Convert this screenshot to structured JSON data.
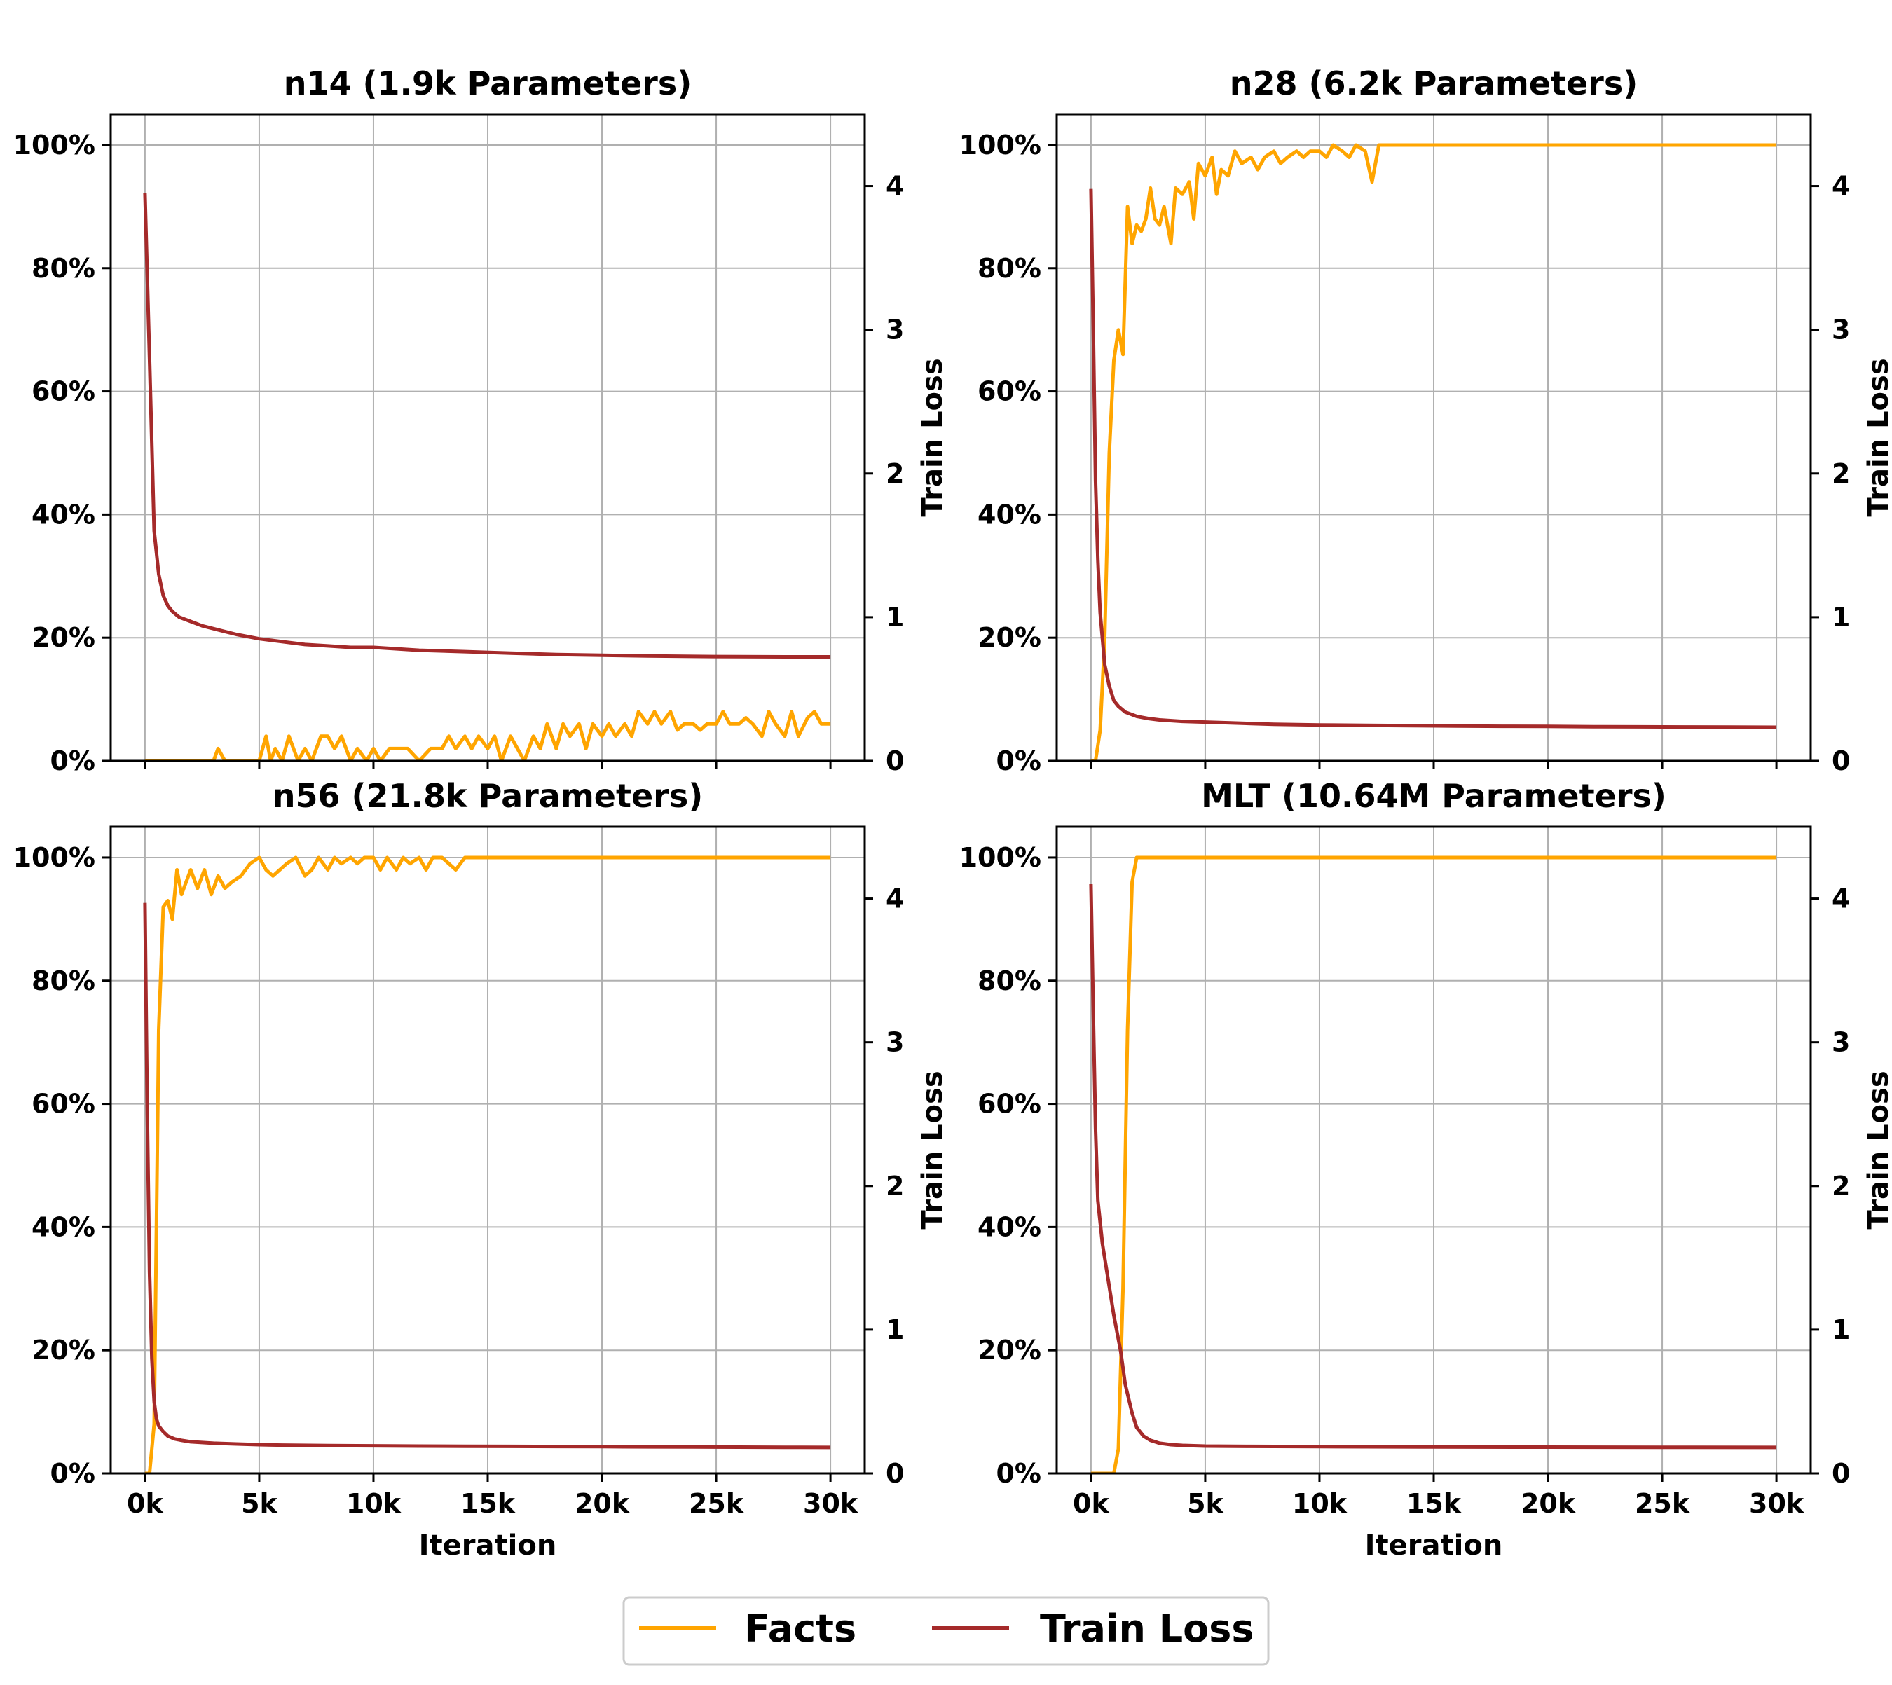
{
  "chart_data": {
    "type": "line",
    "colors": {
      "facts": "#FFA500",
      "loss": "#A52A2A",
      "grid": "#b0b0b0"
    },
    "x_ticks": [
      0,
      5000,
      10000,
      15000,
      20000,
      25000,
      30000
    ],
    "x_tick_labels": [
      "0k",
      "5k",
      "10k",
      "15k",
      "20k",
      "25k",
      "30k"
    ],
    "xlabel": "Iteration",
    "y_left_ticks": [
      0,
      20,
      40,
      60,
      80,
      100
    ],
    "y_left_tick_labels": [
      "0%",
      "20%",
      "40%",
      "60%",
      "80%",
      "100%"
    ],
    "y_right_ticks": [
      0,
      1,
      2,
      3,
      4
    ],
    "y_right_tick_labels": [
      "0",
      "1",
      "2",
      "3",
      "4"
    ],
    "y_right_label": "Train Loss",
    "xlim": [
      -1500,
      31500
    ],
    "ylim_left": [
      0,
      105
    ],
    "ylim_right": [
      0,
      4.5
    ],
    "legend": {
      "placement": "bottom-center",
      "entries": [
        "Facts",
        "Train Loss"
      ]
    },
    "panels": [
      {
        "id": "n14",
        "title": "n14 (1.9k Parameters)",
        "show_x_labels": false,
        "facts": {
          "x": [
            0,
            500,
            1000,
            1500,
            2000,
            2500,
            3000,
            3200,
            3500,
            4000,
            4500,
            5000,
            5300,
            5500,
            5700,
            6000,
            6300,
            6700,
            7000,
            7300,
            7700,
            8000,
            8300,
            8600,
            9000,
            9300,
            9700,
            10000,
            10300,
            10700,
            11000,
            11500,
            12000,
            12500,
            13000,
            13300,
            13600,
            14000,
            14300,
            14600,
            15000,
            15300,
            15600,
            16000,
            16300,
            16600,
            17000,
            17300,
            17600,
            18000,
            18300,
            18600,
            19000,
            19300,
            19600,
            20000,
            20300,
            20600,
            21000,
            21300,
            21600,
            22000,
            22300,
            22600,
            23000,
            23300,
            23600,
            24000,
            24300,
            24600,
            25000,
            25300,
            25600,
            26000,
            26300,
            26600,
            27000,
            27300,
            27600,
            28000,
            28300,
            28600,
            29000,
            29300,
            29600,
            30000
          ],
          "y": [
            0,
            0,
            0,
            0,
            0,
            0,
            0,
            2,
            0,
            0,
            0,
            0,
            4,
            0,
            2,
            0,
            4,
            0,
            2,
            0,
            4,
            4,
            2,
            4,
            0,
            2,
            0,
            2,
            0,
            2,
            2,
            2,
            0,
            2,
            2,
            4,
            2,
            4,
            2,
            4,
            2,
            4,
            0,
            4,
            2,
            0,
            4,
            2,
            6,
            2,
            6,
            4,
            6,
            2,
            6,
            4,
            6,
            4,
            6,
            4,
            8,
            6,
            8,
            6,
            8,
            5,
            6,
            6,
            5,
            6,
            6,
            8,
            6,
            6,
            7,
            6,
            4,
            8,
            6,
            4,
            8,
            4,
            7,
            8,
            6,
            6
          ]
        },
        "loss": {
          "x": [
            0,
            200,
            400,
            600,
            800,
            1000,
            1200,
            1500,
            2000,
            2500,
            3000,
            3500,
            4000,
            5000,
            6000,
            7000,
            8000,
            9000,
            10000,
            12000,
            14000,
            16000,
            18000,
            20000,
            22000,
            24000,
            26000,
            28000,
            30000
          ],
          "y": [
            3.95,
            2.8,
            1.6,
            1.3,
            1.15,
            1.08,
            1.04,
            1.0,
            0.97,
            0.94,
            0.92,
            0.9,
            0.88,
            0.85,
            0.83,
            0.81,
            0.8,
            0.79,
            0.79,
            0.77,
            0.76,
            0.75,
            0.74,
            0.735,
            0.73,
            0.727,
            0.725,
            0.724,
            0.724
          ]
        }
      },
      {
        "id": "n28",
        "title": "n28 (6.2k Parameters)",
        "show_x_labels": false,
        "facts": {
          "x": [
            0,
            200,
            400,
            600,
            800,
            1000,
            1200,
            1400,
            1600,
            1800,
            2000,
            2200,
            2400,
            2600,
            2800,
            3000,
            3200,
            3500,
            3700,
            4000,
            4300,
            4500,
            4700,
            5000,
            5300,
            5500,
            5700,
            6000,
            6300,
            6600,
            7000,
            7300,
            7600,
            8000,
            8300,
            8600,
            9000,
            9300,
            9600,
            10000,
            10300,
            10600,
            11000,
            11300,
            11600,
            12000,
            12300,
            12600,
            13000,
            15000,
            20000,
            25000,
            30000
          ],
          "y": [
            0,
            0,
            5,
            20,
            50,
            65,
            70,
            66,
            90,
            84,
            87,
            86,
            88,
            93,
            88,
            87,
            90,
            84,
            93,
            92,
            94,
            88,
            97,
            95,
            98,
            92,
            96,
            95,
            99,
            97,
            98,
            96,
            98,
            99,
            97,
            98,
            99,
            98,
            99,
            99,
            98,
            100,
            99,
            98,
            100,
            99,
            94,
            100,
            100,
            100,
            100,
            100,
            100
          ]
        },
        "loss": {
          "x": [
            0,
            100,
            200,
            300,
            400,
            600,
            800,
            1000,
            1200,
            1500,
            2000,
            2500,
            3000,
            4000,
            5000,
            6000,
            7000,
            8000,
            9000,
            10000,
            12000,
            14000,
            16000,
            18000,
            20000,
            22000,
            24000,
            26000,
            28000,
            30000
          ],
          "y": [
            3.98,
            3.0,
            1.95,
            1.4,
            1.03,
            0.67,
            0.52,
            0.42,
            0.38,
            0.34,
            0.31,
            0.295,
            0.285,
            0.275,
            0.27,
            0.265,
            0.26,
            0.255,
            0.252,
            0.25,
            0.247,
            0.245,
            0.243,
            0.241,
            0.24,
            0.238,
            0.237,
            0.236,
            0.235,
            0.234
          ]
        }
      },
      {
        "id": "n56",
        "title": "n56 (21.8k Parameters)",
        "show_x_labels": true,
        "facts": {
          "x": [
            0,
            200,
            400,
            600,
            800,
            1000,
            1200,
            1400,
            1600,
            1800,
            2000,
            2300,
            2600,
            2900,
            3200,
            3500,
            3800,
            4200,
            4600,
            5000,
            5300,
            5600,
            5900,
            6200,
            6600,
            7000,
            7300,
            7600,
            8000,
            8300,
            8600,
            9000,
            9300,
            9600,
            10000,
            10300,
            10600,
            11000,
            11300,
            11600,
            12000,
            12300,
            12600,
            13000,
            13300,
            13600,
            14000,
            20000,
            25000,
            30000
          ],
          "y": [
            0,
            0,
            8,
            72,
            92,
            93,
            90,
            98,
            94,
            96,
            98,
            95,
            98,
            94,
            97,
            95,
            96,
            97,
            99,
            100,
            98,
            97,
            98,
            99,
            100,
            97,
            98,
            100,
            98,
            100,
            99,
            100,
            99,
            100,
            100,
            98,
            100,
            98,
            100,
            99,
            100,
            98,
            100,
            100,
            99,
            98,
            100,
            100,
            100,
            100
          ]
        },
        "loss": {
          "x": [
            0,
            100,
            200,
            300,
            400,
            500,
            600,
            800,
            1000,
            1300,
            1600,
            2000,
            2500,
            3000,
            4000,
            5000,
            6000,
            8000,
            10000,
            12000,
            14000,
            16000,
            18000,
            20000,
            22000,
            24000,
            26000,
            28000,
            30000
          ],
          "y": [
            3.97,
            2.5,
            1.4,
            0.8,
            0.5,
            0.38,
            0.33,
            0.29,
            0.26,
            0.24,
            0.23,
            0.22,
            0.215,
            0.21,
            0.205,
            0.2,
            0.197,
            0.194,
            0.192,
            0.19,
            0.189,
            0.188,
            0.187,
            0.186,
            0.185,
            0.184,
            0.183,
            0.182,
            0.181
          ]
        }
      },
      {
        "id": "mlt",
        "title": "MLT (10.64M Parameters)",
        "show_x_labels": true,
        "facts": {
          "x": [
            0,
            500,
            1000,
            1200,
            1400,
            1600,
            1800,
            2000,
            2200,
            2400,
            3000,
            5000,
            10000,
            15000,
            20000,
            25000,
            30000
          ],
          "y": [
            0,
            0,
            0,
            4,
            30,
            72,
            96,
            100,
            100,
            100,
            100,
            100,
            100,
            100,
            100,
            100,
            100
          ]
        },
        "loss": {
          "x": [
            0,
            100,
            200,
            300,
            500,
            800,
            1000,
            1300,
            1500,
            1800,
            2000,
            2300,
            2600,
            3000,
            3500,
            4000,
            5000,
            7000,
            10000,
            15000,
            20000,
            25000,
            30000
          ],
          "y": [
            4.1,
            3.2,
            2.4,
            1.9,
            1.6,
            1.3,
            1.1,
            0.85,
            0.62,
            0.42,
            0.32,
            0.26,
            0.23,
            0.21,
            0.2,
            0.195,
            0.19,
            0.188,
            0.186,
            0.184,
            0.183,
            0.182,
            0.181
          ]
        }
      }
    ]
  }
}
